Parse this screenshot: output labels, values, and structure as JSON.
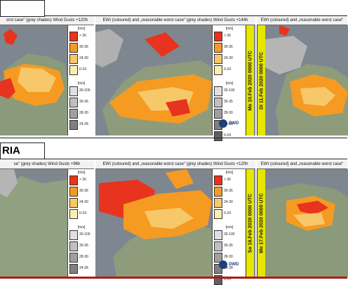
{
  "rows": [
    {
      "label": "",
      "panels": [
        {
          "header": "orst case\" (grey shades) Wind Gusts +120h",
          "date": ""
        },
        {
          "header": "EWI (coloured) and „reasonable worst case“ (grey shades) Wind Gusts +144h",
          "date": "Mo 10.Feb 2020 0000 UTC"
        },
        {
          "header": "EWI (coloured) and „reasonable worst case“",
          "date": "Di 11.Feb 2020 0000 UTC"
        }
      ]
    },
    {
      "label": "RIA",
      "panels": [
        {
          "header": "se\" (grey shades) Wind Gusts +96h",
          "date": ""
        },
        {
          "header": "EWI (coloured) and „reasonable worst case“ (grey shades) Wind Gusts +120h",
          "date": "So 16.Feb 2020 0000 UTC"
        },
        {
          "header": "EWI (coloured) and „reasonable worst case“",
          "date": "Mo 17.Feb 2020 0000 UTC"
        }
      ]
    }
  ],
  "legend": {
    "unit": "[m/s]",
    "color_labels": [
      "> 36",
      "30-36",
      "24-30",
      "0-24"
    ],
    "grey_labels": [
      "30-100",
      "30-35",
      "28-30",
      "24-28",
      "0-24"
    ]
  },
  "branding": {
    "dwd": "DWD"
  },
  "colors": {
    "red": "#e8331f",
    "orange": "#f59b22",
    "light_orange": "#f7c86a",
    "pale": "#fbeeb0",
    "sea": "#7e8790",
    "date_bar": "#e6e600",
    "rule": "#b01a1a"
  }
}
